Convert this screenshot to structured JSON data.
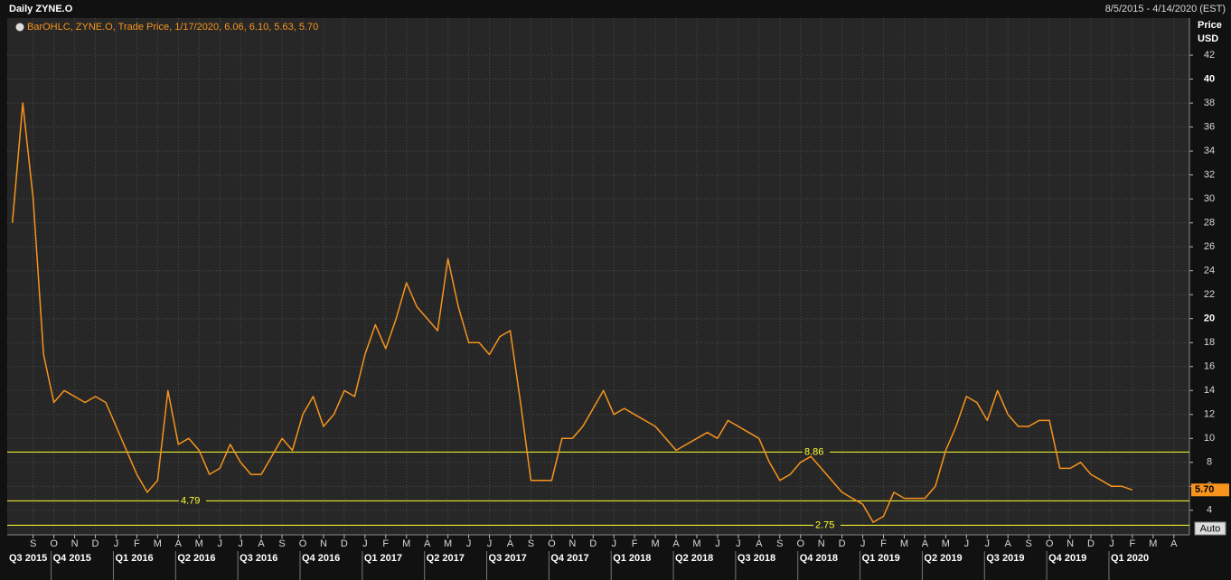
{
  "chart_data": {
    "type": "line",
    "title": "Daily ZYNE.O",
    "subtitle": "8/5/2015 - 4/14/2020 (EST)",
    "ylabel": [
      "Price",
      "USD"
    ],
    "categories": [
      null,
      null,
      "S",
      null,
      "O",
      null,
      "N",
      null,
      "D",
      null,
      "J",
      null,
      "F",
      null,
      "M",
      null,
      "A",
      null,
      "M",
      null,
      "J",
      null,
      "J",
      null,
      "A",
      null,
      "S",
      null,
      "O",
      null,
      "N",
      null,
      "D",
      null,
      "J",
      null,
      "F",
      null,
      "M",
      null,
      "A",
      null,
      "M",
      null,
      "J",
      null,
      "J",
      null,
      "A",
      null,
      "S",
      null,
      "O",
      null,
      "N",
      null,
      "D",
      null,
      "J",
      null,
      "F",
      null,
      "M",
      null,
      "A",
      null,
      "M",
      null,
      "J",
      null,
      "J",
      null,
      "A",
      null,
      "S",
      null,
      "O",
      null,
      "N",
      null,
      "D",
      null,
      "J",
      null,
      "F",
      null,
      "M",
      null,
      "A",
      null,
      "M",
      null,
      "J",
      null,
      "J",
      null,
      "A",
      null,
      "S",
      null,
      "O",
      null,
      "N",
      null,
      "D",
      null,
      "J",
      null,
      "F",
      null,
      "M",
      null,
      "A",
      null
    ],
    "quarters": [
      "Q3 2015",
      "Q4 2015",
      "Q1 2016",
      "Q2 2016",
      "Q3 2016",
      "Q4 2016",
      "Q1 2017",
      "Q2 2017",
      "Q3 2017",
      "Q4 2017",
      "Q1 2018",
      "Q2 2018",
      "Q3 2018",
      "Q4 2018",
      "Q1 2019",
      "Q2 2019",
      "Q3 2019",
      "Q4 2019",
      "Q1 2020"
    ],
    "series": [
      {
        "name": "BarOHLC, ZYNE.O, Trade Price, 1/17/2020, 6.06, 6.10, 5.63, 5.70",
        "color": "#f7941d",
        "values": [
          28,
          38,
          30,
          17,
          13,
          14,
          13.5,
          13,
          13.5,
          13,
          11,
          9,
          7,
          5.5,
          6.5,
          14,
          9.5,
          10,
          9,
          7,
          7.5,
          9.5,
          8,
          7,
          7,
          8.5,
          10,
          9,
          12,
          13.5,
          11,
          12,
          14,
          13.5,
          17,
          19.5,
          17.5,
          20,
          23,
          21,
          20,
          19,
          25,
          21,
          18,
          18,
          17,
          18.5,
          19,
          13,
          6.5,
          6.5,
          6.5,
          10,
          10,
          11,
          12.5,
          14,
          12,
          12.5,
          12,
          11.5,
          11,
          10,
          9,
          9.5,
          10,
          10.5,
          10,
          11.5,
          11,
          10.5,
          10,
          8,
          6.5,
          7,
          8,
          8.5,
          7.5,
          6.5,
          5.5,
          5,
          4.5,
          3,
          3.5,
          5.5,
          5,
          5,
          5,
          6,
          9,
          11,
          13.5,
          13,
          11.5,
          14,
          12,
          11,
          11,
          11.5,
          11.5,
          7.5,
          7.5,
          8,
          7,
          6.5,
          6,
          6,
          5.7,
          null,
          null,
          null,
          null,
          null
        ]
      }
    ],
    "hlines": [
      8.86,
      4.79,
      2.75
    ],
    "hline_color": "#ffff33",
    "last_value": {
      "value": 5.7,
      "label": "5.70"
    },
    "ylim": [
      1.95,
      45.1
    ],
    "yticks": [
      4,
      6,
      8,
      10,
      12,
      14,
      16,
      18,
      20,
      22,
      24,
      26,
      28,
      30,
      32,
      34,
      36,
      38,
      40,
      42
    ],
    "grid": true
  },
  "controls": {
    "auto": "Auto"
  }
}
